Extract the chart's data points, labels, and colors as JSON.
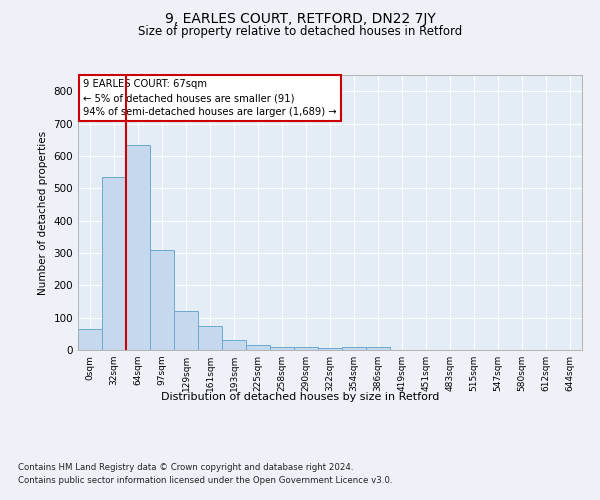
{
  "title": "9, EARLES COURT, RETFORD, DN22 7JY",
  "subtitle": "Size of property relative to detached houses in Retford",
  "xlabel": "Distribution of detached houses by size in Retford",
  "ylabel": "Number of detached properties",
  "bar_labels": [
    "0sqm",
    "32sqm",
    "64sqm",
    "97sqm",
    "129sqm",
    "161sqm",
    "193sqm",
    "225sqm",
    "258sqm",
    "290sqm",
    "322sqm",
    "354sqm",
    "386sqm",
    "419sqm",
    "451sqm",
    "483sqm",
    "515sqm",
    "547sqm",
    "580sqm",
    "612sqm",
    "644sqm"
  ],
  "bar_heights": [
    65,
    535,
    635,
    310,
    120,
    75,
    30,
    17,
    10,
    8,
    7,
    10,
    8,
    0,
    0,
    0,
    0,
    0,
    0,
    0,
    0
  ],
  "bar_color": "#c5d8ed",
  "bar_edge_color": "#6aaad4",
  "vline_x": 1.5,
  "vline_color": "#cc0000",
  "annotation_text": "9 EARLES COURT: 67sqm\n← 5% of detached houses are smaller (91)\n94% of semi-detached houses are larger (1,689) →",
  "annotation_box_color": "#ffffff",
  "annotation_box_edge": "#cc0000",
  "ylim": [
    0,
    850
  ],
  "yticks": [
    0,
    100,
    200,
    300,
    400,
    500,
    600,
    700,
    800
  ],
  "background_color": "#eef2f8",
  "plot_bg_color": "#e4ecf6",
  "grid_color": "#ffffff",
  "footer_line1": "Contains HM Land Registry data © Crown copyright and database right 2024.",
  "footer_line2": "Contains public sector information licensed under the Open Government Licence v3.0."
}
